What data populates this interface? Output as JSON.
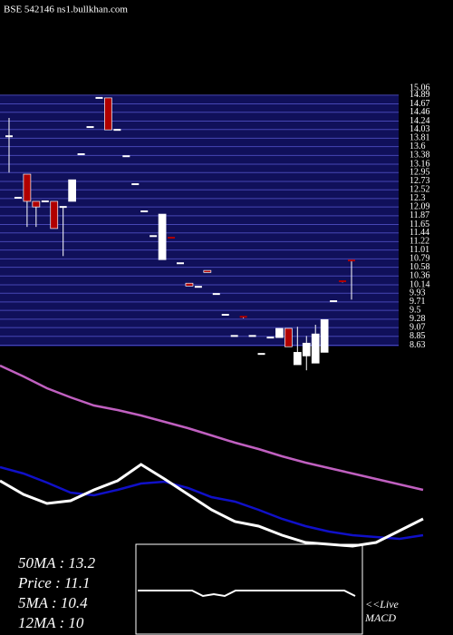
{
  "chart_data": [
    {
      "type": "candlestick",
      "title": "BSE 542146  ns1.bullkhan.com",
      "ylim": [
        8.3,
        15.0
      ],
      "yticks": [
        15.06,
        14.89,
        14.67,
        14.46,
        14.24,
        14.03,
        13.81,
        13.6,
        13.38,
        13.16,
        12.95,
        12.73,
        12.52,
        12.3,
        12.09,
        11.87,
        11.65,
        11.44,
        11.22,
        11.01,
        10.79,
        10.58,
        10.36,
        10.14,
        9.93,
        9.71,
        9.5,
        9.28,
        9.07,
        8.85,
        8.63
      ],
      "up_color": "#ffffff",
      "down_color": "#b00000",
      "band_color": "#10105a",
      "grid_color": "#4646b4",
      "open": [
        13.86,
        12.32,
        12.91,
        12.23,
        12.23,
        12.23,
        12.09,
        12.23,
        13.41,
        14.09,
        14.82,
        14.82,
        14.02,
        13.36,
        12.66,
        11.98,
        11.36,
        10.77,
        11.32,
        10.68,
        10.18,
        10.09,
        10.5,
        9.91,
        9.39,
        8.86,
        9.34,
        8.86,
        8.41,
        8.82,
        8.82,
        9.05,
        8.14,
        8.36,
        8.18,
        8.45,
        9.73,
        10.23,
        10.75
      ],
      "high": [
        14.32,
        12.32,
        12.91,
        12.23,
        12.23,
        12.23,
        12.09,
        12.77,
        13.41,
        14.09,
        14.82,
        14.82,
        14.02,
        13.36,
        12.66,
        11.98,
        11.36,
        11.91,
        11.32,
        10.68,
        10.18,
        10.09,
        10.5,
        9.91,
        9.39,
        8.86,
        9.34,
        8.86,
        8.41,
        8.82,
        9.05,
        9.05,
        9.09,
        8.86,
        9.14,
        9.27,
        9.73,
        10.23,
        10.75
      ],
      "low": [
        12.95,
        12.32,
        11.59,
        11.59,
        12.23,
        11.55,
        10.86,
        12.23,
        13.41,
        14.09,
        14.82,
        14.02,
        14.02,
        13.36,
        12.66,
        11.98,
        11.36,
        10.77,
        11.3,
        10.68,
        10.11,
        10.09,
        10.45,
        9.91,
        9.39,
        8.86,
        9.3,
        8.86,
        8.41,
        8.82,
        8.82,
        8.59,
        8.14,
        8.0,
        8.18,
        8.45,
        9.73,
        10.2,
        9.77
      ],
      "close": [
        13.86,
        12.32,
        12.23,
        12.09,
        12.23,
        11.55,
        12.09,
        12.77,
        13.41,
        14.09,
        14.82,
        14.02,
        14.02,
        13.36,
        12.66,
        11.98,
        11.36,
        11.91,
        11.3,
        10.68,
        10.11,
        10.09,
        10.45,
        9.91,
        9.39,
        8.86,
        9.3,
        8.86,
        8.41,
        8.82,
        9.05,
        8.59,
        8.45,
        8.68,
        8.91,
        9.27,
        9.73,
        10.2,
        10.72
      ]
    },
    {
      "type": "line",
      "xlim": [
        0,
        18
      ],
      "ylim": [
        -10,
        200
      ],
      "x": [
        0,
        1,
        2,
        3,
        4,
        5,
        6,
        7,
        8,
        9,
        10,
        11,
        12,
        13,
        14,
        15,
        16,
        17,
        18
      ],
      "series": [
        {
          "color": "#c060c0",
          "values": [
            197,
            185,
            172,
            162,
            153,
            148,
            142,
            135,
            128,
            120,
            112,
            105,
            97,
            90,
            84,
            78,
            72,
            66,
            60
          ]
        },
        {
          "color": "#1010c8",
          "values": [
            85,
            78,
            68,
            57,
            54,
            60,
            67,
            69,
            62,
            52,
            47,
            38,
            28,
            20,
            14,
            10,
            8,
            6,
            10
          ]
        },
        {
          "color": "#ffffff",
          "values": [
            70,
            55,
            45,
            48,
            60,
            70,
            88,
            72,
            55,
            38,
            25,
            20,
            10,
            2,
            0,
            -2,
            2,
            15,
            28
          ]
        }
      ],
      "legend": [
        "50MA : 13.2",
        "Price   : 11.1",
        "5MA : 10.4",
        "12MA : 10"
      ]
    },
    {
      "type": "macd",
      "ylim": [
        -10,
        10
      ],
      "values": [
        0,
        0,
        0,
        0,
        0,
        0,
        -3,
        -2,
        -3,
        0,
        0,
        0,
        0,
        0,
        0,
        0,
        0,
        0,
        0,
        0,
        -3
      ],
      "notes": [
        "<<Live",
        "MACD"
      ]
    }
  ]
}
